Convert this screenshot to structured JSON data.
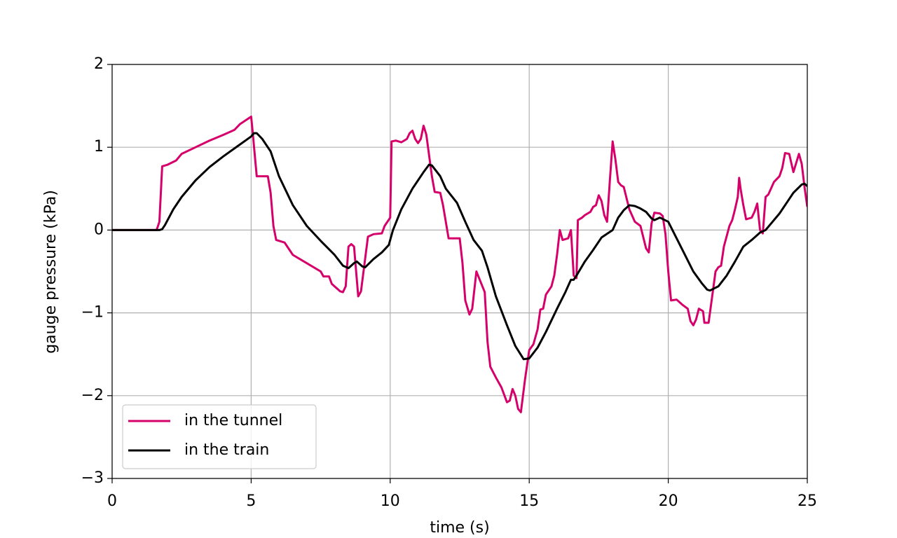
{
  "chart_data": {
    "type": "line",
    "xlabel": "time (s)",
    "ylabel": "gauge pressure (kPa)",
    "xlim": [
      0,
      25
    ],
    "xticks": [
      0,
      5,
      10,
      15,
      20,
      25
    ],
    "ylim": [
      -3,
      2
    ],
    "yticks": [
      {
        "value": -3,
        "label": "−3"
      },
      {
        "value": -2,
        "label": "−2"
      },
      {
        "value": -1,
        "label": "−1"
      },
      0,
      1,
      2
    ],
    "grid": true,
    "legend": "lower left",
    "series": [
      {
        "name": "in the tunnel",
        "color": "#d6006b",
        "x": [
          0,
          1.6,
          1.7,
          1.8,
          2.0,
          2.3,
          2.5,
          3.0,
          3.5,
          4.0,
          4.4,
          4.6,
          5.0,
          5.05,
          5.2,
          5.6,
          5.7,
          5.8,
          5.9,
          6.2,
          6.5,
          7.0,
          7.5,
          7.6,
          7.8,
          7.9,
          8.2,
          8.3,
          8.4,
          8.5,
          8.6,
          8.7,
          8.85,
          8.95,
          9.2,
          9.4,
          9.7,
          9.8,
          10.0,
          10.05,
          10.2,
          10.4,
          10.6,
          10.7,
          10.8,
          10.9,
          11.0,
          11.1,
          11.2,
          11.3,
          11.5,
          11.6,
          11.8,
          11.9,
          12.1,
          12.3,
          12.5,
          12.6,
          12.7,
          12.85,
          12.95,
          13.1,
          13.4,
          13.5,
          13.6,
          13.8,
          14.0,
          14.2,
          14.3,
          14.4,
          14.5,
          14.6,
          14.7,
          14.85,
          15.0,
          15.15,
          15.3,
          15.4,
          15.5,
          15.6,
          15.8,
          15.9,
          16.0,
          16.1,
          16.2,
          16.4,
          16.5,
          16.6,
          16.7,
          16.75,
          16.9,
          17.0,
          17.2,
          17.3,
          17.4,
          17.5,
          17.6,
          17.7,
          17.8,
          17.9,
          18.0,
          18.1,
          18.2,
          18.3,
          18.4,
          18.6,
          18.8,
          19.0,
          19.2,
          19.3,
          19.4,
          19.5,
          19.7,
          19.8,
          19.9,
          20.0,
          20.1,
          20.3,
          20.5,
          20.7,
          20.8,
          20.9,
          21.0,
          21.1,
          21.25,
          21.3,
          21.45,
          21.6,
          21.7,
          21.8,
          21.9,
          22.0,
          22.2,
          22.3,
          22.4,
          22.5,
          22.55,
          22.6,
          22.7,
          22.8,
          23.0,
          23.1,
          23.2,
          23.3,
          23.4,
          23.5,
          23.6,
          23.8,
          24.0,
          24.1,
          24.2,
          24.35,
          24.5,
          24.7,
          24.8,
          24.9,
          25.0
        ],
        "values": [
          0,
          0,
          0.1,
          0.77,
          0.79,
          0.84,
          0.92,
          1.0,
          1.08,
          1.15,
          1.21,
          1.28,
          1.37,
          1.2,
          0.65,
          0.65,
          0.45,
          0.05,
          -0.12,
          -0.15,
          -0.3,
          -0.4,
          -0.5,
          -0.56,
          -0.56,
          -0.65,
          -0.74,
          -0.75,
          -0.68,
          -0.2,
          -0.17,
          -0.2,
          -0.8,
          -0.74,
          -0.08,
          -0.05,
          -0.04,
          0.05,
          0.15,
          1.07,
          1.08,
          1.06,
          1.1,
          1.17,
          1.2,
          1.1,
          1.05,
          1.1,
          1.26,
          1.15,
          0.65,
          0.46,
          0.45,
          0.3,
          -0.1,
          -0.1,
          -0.1,
          -0.4,
          -0.85,
          -1.02,
          -0.95,
          -0.5,
          -0.75,
          -1.35,
          -1.65,
          -1.78,
          -1.9,
          -2.08,
          -2.06,
          -1.92,
          -2.0,
          -2.16,
          -2.2,
          -1.8,
          -1.45,
          -1.38,
          -1.2,
          -0.96,
          -0.95,
          -0.78,
          -0.68,
          -0.55,
          -0.3,
          0.0,
          -0.12,
          -0.1,
          0.0,
          -0.55,
          -0.58,
          0.12,
          0.15,
          0.18,
          0.22,
          0.28,
          0.3,
          0.42,
          0.35,
          0.18,
          0.1,
          0.6,
          1.07,
          0.85,
          0.58,
          0.54,
          0.52,
          0.25,
          0.1,
          0.05,
          -0.22,
          -0.27,
          0.08,
          0.21,
          0.2,
          0.17,
          -0.05,
          -0.5,
          -0.85,
          -0.84,
          -0.9,
          -0.95,
          -1.1,
          -1.15,
          -1.08,
          -0.95,
          -0.98,
          -1.12,
          -1.12,
          -0.75,
          -0.5,
          -0.45,
          -0.43,
          -0.2,
          0.05,
          0.12,
          0.25,
          0.4,
          0.63,
          0.5,
          0.3,
          0.13,
          0.15,
          0.22,
          0.32,
          0.0,
          -0.04,
          0.4,
          0.43,
          0.58,
          0.65,
          0.75,
          0.93,
          0.92,
          0.7,
          0.92,
          0.8,
          0.52,
          0.28
        ]
      },
      {
        "name": "in the train",
        "color": "#000000",
        "x": [
          0,
          1.7,
          1.8,
          1.9,
          2.2,
          2.5,
          3.0,
          3.5,
          4.0,
          4.5,
          5.0,
          5.1,
          5.2,
          5.4,
          5.7,
          6.0,
          6.5,
          7.0,
          7.5,
          8.0,
          8.3,
          8.5,
          8.7,
          8.8,
          9.0,
          9.1,
          9.4,
          9.7,
          9.95,
          10.1,
          10.4,
          10.8,
          11.0,
          11.2,
          11.4,
          11.5,
          11.8,
          12.0,
          12.4,
          12.7,
          13.0,
          13.3,
          13.5,
          13.8,
          14.2,
          14.5,
          14.8,
          15.0,
          15.3,
          15.6,
          16.0,
          16.3,
          16.5,
          16.6,
          16.7,
          17.0,
          17.3,
          17.6,
          18.0,
          18.2,
          18.4,
          18.6,
          18.8,
          19.0,
          19.2,
          19.4,
          19.5,
          19.7,
          20.0,
          20.3,
          20.6,
          20.9,
          21.2,
          21.4,
          21.5,
          21.8,
          22.1,
          22.4,
          22.7,
          23.0,
          23.3,
          23.5,
          23.7,
          24.0,
          24.3,
          24.5,
          24.8,
          24.9,
          25.0
        ],
        "values": [
          0,
          0,
          0.01,
          0.06,
          0.25,
          0.4,
          0.6,
          0.76,
          0.89,
          1.01,
          1.13,
          1.17,
          1.17,
          1.1,
          0.95,
          0.65,
          0.3,
          0.05,
          -0.13,
          -0.3,
          -0.43,
          -0.46,
          -0.4,
          -0.38,
          -0.44,
          -0.45,
          -0.35,
          -0.27,
          -0.18,
          0.0,
          0.25,
          0.5,
          0.6,
          0.7,
          0.79,
          0.78,
          0.65,
          0.5,
          0.33,
          0.1,
          -0.12,
          -0.25,
          -0.45,
          -0.8,
          -1.15,
          -1.4,
          -1.56,
          -1.55,
          -1.42,
          -1.23,
          -0.95,
          -0.75,
          -0.6,
          -0.6,
          -0.55,
          -0.38,
          -0.24,
          -0.09,
          0.0,
          0.15,
          0.24,
          0.3,
          0.29,
          0.26,
          0.22,
          0.14,
          0.12,
          0.15,
          0.1,
          -0.1,
          -0.3,
          -0.5,
          -0.64,
          -0.72,
          -0.73,
          -0.68,
          -0.55,
          -0.38,
          -0.2,
          -0.12,
          -0.03,
          0.0,
          0.08,
          0.2,
          0.35,
          0.45,
          0.55,
          0.56,
          0.53
        ]
      }
    ]
  }
}
